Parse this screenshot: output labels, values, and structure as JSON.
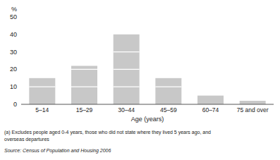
{
  "chart_data": {
    "type": "bar",
    "categories": [
      "5–14",
      "15–29",
      "30–44",
      "45–59",
      "60–74",
      "75 and over"
    ],
    "values": [
      15,
      22,
      40,
      15,
      5,
      2
    ],
    "color": "#c8c8c8",
    "ylabel": "%",
    "xlabel": "Age (years)",
    "ylim": [
      0,
      50
    ],
    "yticks": [
      0,
      10,
      20,
      30,
      40,
      50
    ],
    "grid": false,
    "annotations": [
      "(a) Excludes people aged 0-4 years, those who did not state where they lived 5 years ago, and",
      "overseas departures",
      "Source: Census of Population and Housing 2006"
    ]
  }
}
